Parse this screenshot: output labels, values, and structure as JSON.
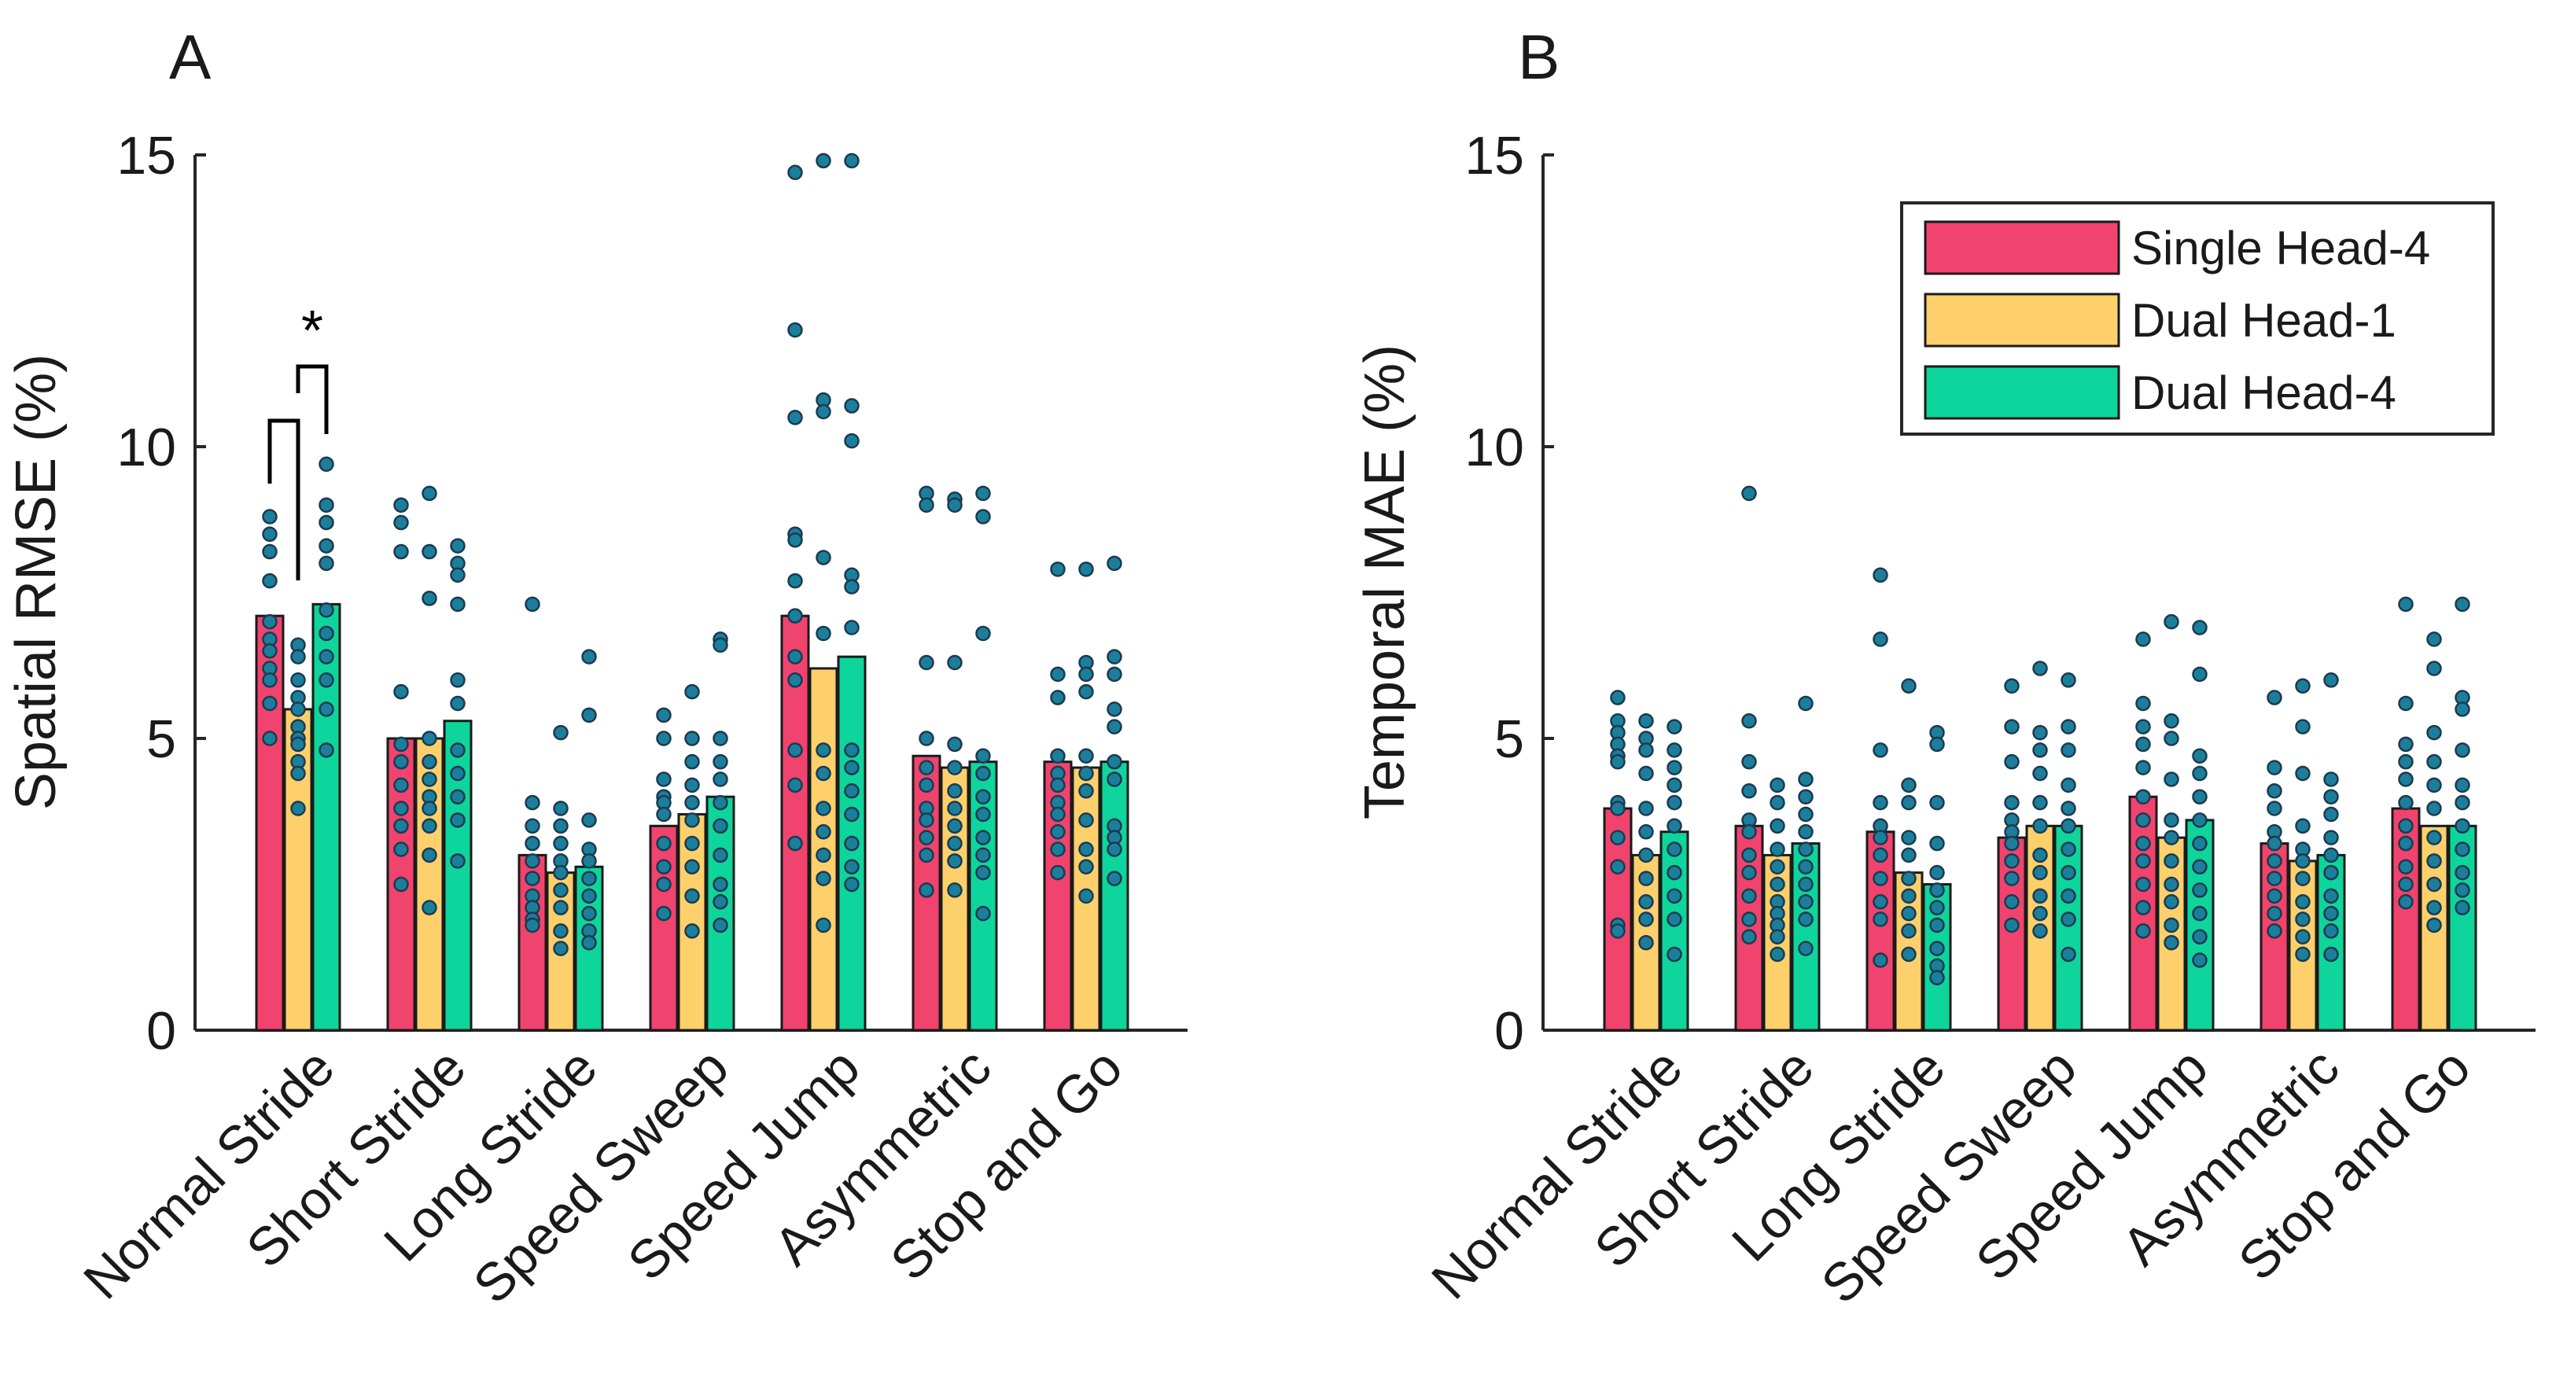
{
  "colors": {
    "single_head_4": "#f0436e",
    "dual_head_1": "#fdd06c",
    "dual_head_4": "#0dd59b",
    "dots": "#1b7f9b"
  },
  "legend": [
    {
      "label": "Single Head-4",
      "color_key": "single_head_4"
    },
    {
      "label": "Dual Head-1",
      "color_key": "dual_head_1"
    },
    {
      "label": "Dual Head-4",
      "color_key": "dual_head_4"
    }
  ],
  "chart_data": [
    {
      "type": "bar",
      "panel": "A",
      "ylabel": "Spatial RMSE (%)",
      "xlabel": "",
      "ylim": [
        0,
        15
      ],
      "yticks": [
        0,
        5,
        10,
        15
      ],
      "categories": [
        "Normal Stride",
        "Short Stride",
        "Long Stride",
        "Speed Sweep",
        "Speed Jump",
        "Asymmetric",
        "Stop and Go"
      ],
      "legend_position": "none",
      "series": [
        {
          "name": "Single Head-4",
          "values": [
            7.1,
            5.0,
            3.0,
            3.5,
            7.1,
            4.7,
            4.6
          ]
        },
        {
          "name": "Dual Head-1",
          "values": [
            5.5,
            5.0,
            2.7,
            3.7,
            6.2,
            4.5,
            4.5
          ]
        },
        {
          "name": "Dual Head-4",
          "values": [
            7.3,
            5.3,
            2.8,
            4.0,
            6.4,
            4.6,
            4.6
          ]
        }
      ],
      "points": [
        [
          [
            8.8,
            8.5,
            8.2,
            7.7,
            7.0,
            6.7,
            6.2,
            6.5,
            6.0,
            5.6,
            5.0
          ],
          [
            6.6,
            6.4,
            6.0,
            5.7,
            5.5,
            5.2,
            5.0,
            4.9,
            4.6,
            4.4,
            3.8
          ],
          [
            9.7,
            9.0,
            8.7,
            8.3,
            8.0,
            7.2,
            6.8,
            6.4,
            6.0,
            5.5,
            4.8
          ]
        ],
        [
          [
            9.0,
            8.7,
            8.2,
            5.8,
            4.9,
            4.6,
            4.2,
            3.8,
            3.5,
            3.1,
            2.5
          ],
          [
            9.2,
            8.2,
            7.4,
            5.0,
            4.6,
            4.3,
            4.0,
            3.8,
            3.5,
            3.0,
            2.1
          ],
          [
            8.3,
            8.0,
            7.8,
            7.3,
            6.0,
            5.6,
            4.8,
            4.4,
            4.0,
            3.6,
            2.9
          ]
        ],
        [
          [
            7.3,
            3.9,
            3.5,
            3.2,
            2.9,
            2.6,
            2.3,
            2.1,
            1.9,
            1.8
          ],
          [
            5.1,
            3.8,
            3.5,
            3.2,
            2.9,
            2.7,
            2.4,
            2.1,
            1.7,
            1.4
          ],
          [
            6.4,
            5.4,
            3.6,
            3.1,
            2.9,
            2.6,
            2.3,
            2.0,
            1.7,
            1.5
          ]
        ],
        [
          [
            5.4,
            5.0,
            4.3,
            4.0,
            3.9,
            3.7,
            3.2,
            2.8,
            2.5,
            2.0
          ],
          [
            5.8,
            5.0,
            4.6,
            4.2,
            3.9,
            3.6,
            3.2,
            2.8,
            2.3,
            1.7
          ],
          [
            6.7,
            6.6,
            5.0,
            4.6,
            4.3,
            3.9,
            3.5,
            3.0,
            2.5,
            2.2,
            1.8
          ]
        ],
        [
          [
            14.7,
            12.0,
            10.5,
            8.5,
            8.4,
            7.7,
            7.1,
            6.4,
            6.0,
            4.8,
            4.2,
            3.2
          ],
          [
            14.9,
            10.8,
            10.6,
            8.1,
            6.8,
            4.8,
            4.4,
            3.8,
            3.4,
            3.0,
            2.6,
            1.8
          ],
          [
            14.9,
            10.7,
            10.1,
            7.8,
            7.6,
            6.9,
            4.8,
            4.5,
            4.1,
            3.7,
            3.2,
            2.8,
            2.5
          ]
        ],
        [
          [
            9.2,
            9.0,
            6.3,
            5.0,
            4.5,
            4.2,
            3.8,
            3.6,
            3.3,
            3.0,
            2.4
          ],
          [
            9.1,
            9.0,
            6.3,
            4.9,
            4.5,
            4.1,
            3.8,
            3.5,
            3.2,
            2.9,
            2.4
          ],
          [
            9.2,
            8.8,
            6.8,
            4.7,
            4.4,
            4.0,
            3.7,
            3.3,
            3.0,
            2.7,
            2.0
          ]
        ],
        [
          [
            7.9,
            6.1,
            5.7,
            4.7,
            4.4,
            4.2,
            3.9,
            3.7,
            3.4,
            3.1,
            2.7
          ],
          [
            7.9,
            6.3,
            6.1,
            5.8,
            4.7,
            4.4,
            4.1,
            3.6,
            3.1,
            2.8,
            2.3
          ],
          [
            8.0,
            6.4,
            6.1,
            5.5,
            5.2,
            4.6,
            4.3,
            3.5,
            3.3,
            3.1,
            2.6
          ]
        ]
      ],
      "significance": {
        "label": "*",
        "pairs": [
          [
            0,
            0,
            1
          ],
          [
            0,
            1,
            2
          ]
        ]
      }
    },
    {
      "type": "bar",
      "panel": "B",
      "ylabel": "Temporal MAE (%)",
      "xlabel": "",
      "ylim": [
        0,
        15
      ],
      "yticks": [
        0,
        5,
        10,
        15
      ],
      "categories": [
        "Normal Stride",
        "Short Stride",
        "Long Stride",
        "Speed Sweep",
        "Speed Jump",
        "Asymmetric",
        "Stop and Go"
      ],
      "legend_position": "top-right",
      "series": [
        {
          "name": "Single Head-4",
          "values": [
            3.8,
            3.5,
            3.4,
            3.3,
            4.0,
            3.2,
            3.8
          ]
        },
        {
          "name": "Dual Head-1",
          "values": [
            3.0,
            3.0,
            2.7,
            3.5,
            3.3,
            2.9,
            3.5
          ]
        },
        {
          "name": "Dual Head-4",
          "values": [
            3.4,
            3.2,
            2.5,
            3.5,
            3.6,
            3.0,
            3.5
          ]
        }
      ],
      "points": [
        [
          [
            5.7,
            5.3,
            5.1,
            4.9,
            4.7,
            4.6,
            3.9,
            3.8,
            3.3,
            2.8,
            1.8,
            1.7
          ],
          [
            5.3,
            5.0,
            4.8,
            4.4,
            3.8,
            3.4,
            3.0,
            2.6,
            2.2,
            1.9,
            1.5
          ],
          [
            5.2,
            4.8,
            4.5,
            4.2,
            3.9,
            3.5,
            3.1,
            2.7,
            2.3,
            1.9,
            1.3
          ]
        ],
        [
          [
            9.2,
            5.3,
            4.6,
            4.1,
            3.6,
            3.4,
            3.0,
            2.7,
            2.3,
            1.9,
            1.6
          ],
          [
            4.2,
            3.9,
            3.5,
            3.1,
            2.8,
            2.5,
            2.2,
            2.0,
            1.8,
            1.6,
            1.3
          ],
          [
            5.6,
            4.3,
            4.0,
            3.7,
            3.4,
            3.1,
            2.8,
            2.5,
            2.2,
            1.9,
            1.4
          ]
        ],
        [
          [
            7.8,
            6.7,
            4.8,
            3.9,
            3.5,
            3.3,
            3.0,
            2.6,
            2.2,
            1.9,
            1.2
          ],
          [
            5.9,
            4.2,
            3.9,
            3.3,
            3.0,
            2.6,
            2.3,
            2.0,
            1.7,
            1.3
          ],
          [
            5.1,
            4.9,
            3.9,
            3.2,
            2.7,
            2.4,
            2.1,
            1.8,
            1.4,
            1.1,
            0.9
          ]
        ],
        [
          [
            5.9,
            5.2,
            4.6,
            3.9,
            3.6,
            3.4,
            3.2,
            2.9,
            2.6,
            2.2,
            1.8
          ],
          [
            6.2,
            5.1,
            4.8,
            4.4,
            3.9,
            3.5,
            3.0,
            2.7,
            2.3,
            2.0,
            1.7
          ],
          [
            6.0,
            5.2,
            4.8,
            4.2,
            3.8,
            3.5,
            3.1,
            2.7,
            2.3,
            1.9,
            1.3
          ]
        ],
        [
          [
            6.7,
            5.6,
            5.2,
            4.9,
            4.5,
            4.0,
            3.6,
            3.2,
            2.9,
            2.5,
            2.1,
            1.7
          ],
          [
            7.0,
            5.3,
            5.0,
            4.3,
            3.6,
            3.3,
            2.9,
            2.5,
            2.2,
            1.8,
            1.5
          ],
          [
            6.9,
            6.1,
            4.7,
            4.4,
            4.0,
            3.6,
            3.2,
            2.8,
            2.4,
            2.0,
            1.6,
            1.2
          ]
        ],
        [
          [
            5.7,
            4.5,
            4.1,
            3.8,
            3.4,
            3.2,
            2.9,
            2.6,
            2.3,
            2.0,
            1.7
          ],
          [
            5.9,
            5.2,
            4.4,
            3.5,
            3.1,
            2.9,
            2.6,
            2.2,
            1.9,
            1.6,
            1.3
          ],
          [
            6.0,
            4.3,
            4.0,
            3.7,
            3.3,
            3.0,
            2.7,
            2.3,
            2.0,
            1.7,
            1.3
          ]
        ],
        [
          [
            7.3,
            5.6,
            4.9,
            4.6,
            4.3,
            3.9,
            3.5,
            3.2,
            2.8,
            2.5,
            2.2
          ],
          [
            6.7,
            6.2,
            5.1,
            4.6,
            4.2,
            3.8,
            3.3,
            2.9,
            2.5,
            2.1,
            1.8
          ],
          [
            7.3,
            5.7,
            5.5,
            4.8,
            4.2,
            3.9,
            3.5,
            3.1,
            2.7,
            2.4,
            2.1
          ]
        ]
      ]
    }
  ]
}
